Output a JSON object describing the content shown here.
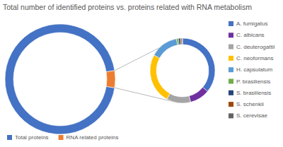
{
  "chart_data": [
    {
      "type": "donut",
      "title": "Total number of identified proteins vs. proteins related with RNA metabolism",
      "categories": [
        "Total proteins",
        "RNA related proteins"
      ],
      "values": [
        95,
        5
      ],
      "colors": [
        "#4472c4",
        "#ed7d31"
      ],
      "legend": "bottom"
    },
    {
      "type": "donut",
      "categories": [
        "A. fumigatus",
        "C. albicans",
        "C. deuterogattii",
        "C. neoformans",
        "H. capsulatum",
        "P. brasiliensis",
        "S. brasiliensis",
        "S. schenkii",
        "S. cerevisae"
      ],
      "values": [
        36,
        10,
        12,
        25,
        14,
        1,
        1,
        0.7,
        0.3
      ],
      "colors": [
        "#4472c4",
        "#7030a0",
        "#a5a5a5",
        "#ffc000",
        "#5b9bd5",
        "#70ad47",
        "#264478",
        "#9e480e",
        "#636363"
      ],
      "legend": "right"
    }
  ]
}
